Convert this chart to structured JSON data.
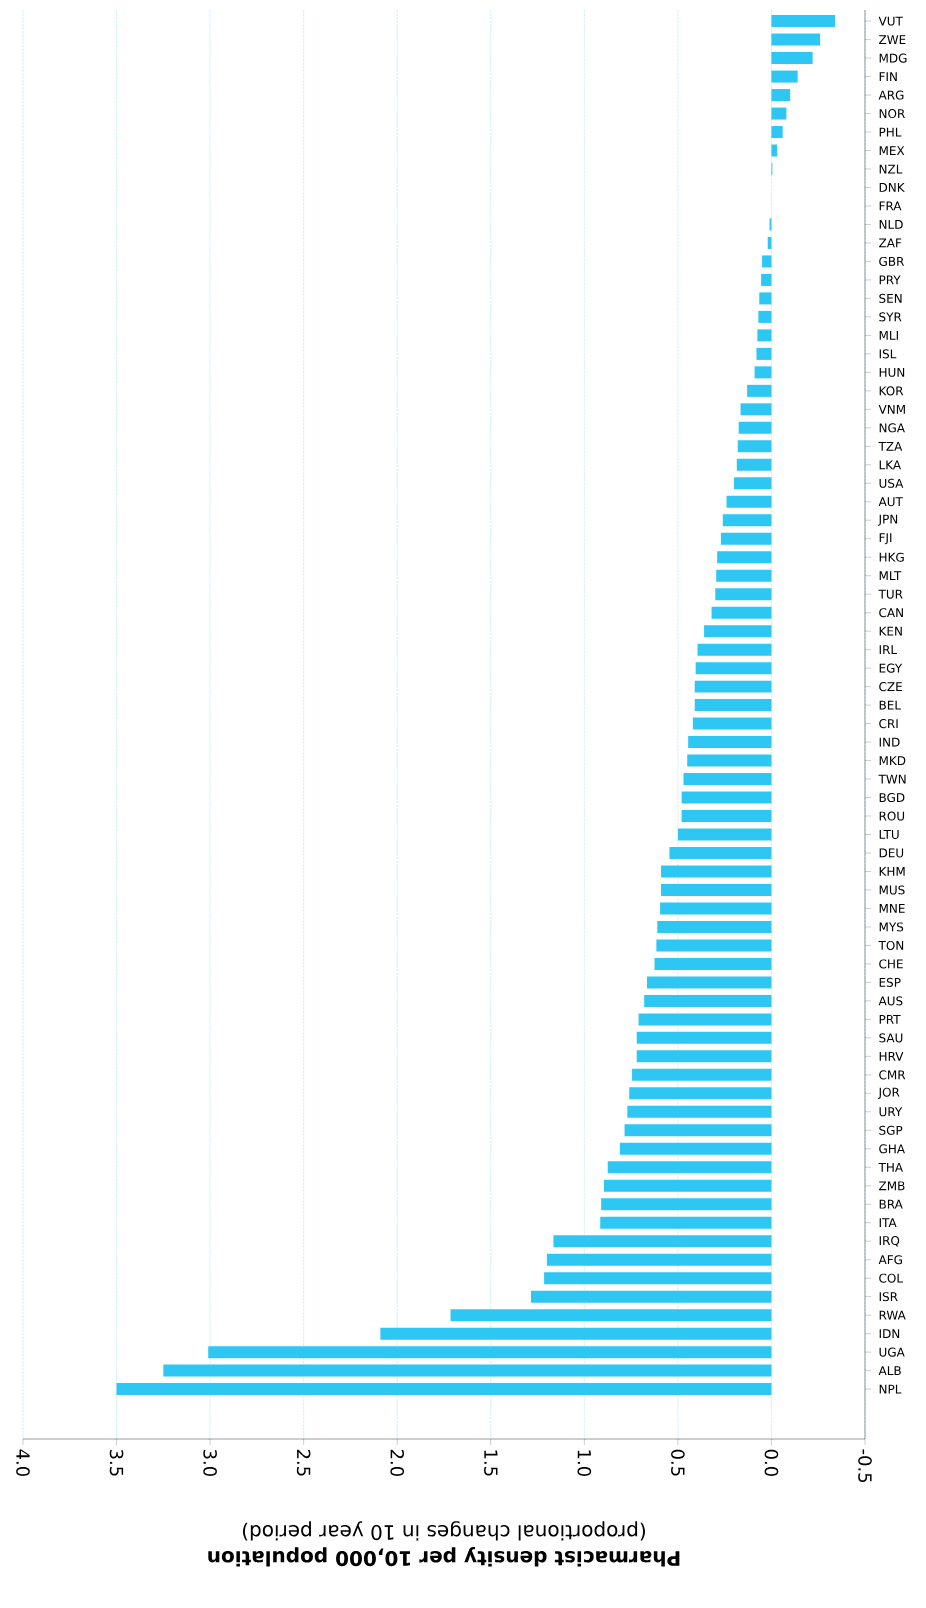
{
  "chart_data": {
    "type": "bar",
    "orientation": "horizontal",
    "xlabel": "**Pharmacist density per 10,000 population**\n(proportional changes in 10 year period)",
    "categories": [
      "VUT",
      "ZWE",
      "MDG",
      "FIN",
      "ARG",
      "NOR",
      "PHL",
      "MEX",
      "NZL",
      "DNK",
      "FRA",
      "NLD",
      "ZAF",
      "GBR",
      "PRY",
      "SEN",
      "SYR",
      "MLI",
      "ISL",
      "HUN",
      "KOR",
      "VNM",
      "NGA",
      "TZA",
      "LKA",
      "USA",
      "AUT",
      "JPN",
      "FJI",
      "HKG",
      "MLT",
      "TUR",
      "CAN",
      "KEN",
      "IRL",
      "EGY",
      "CZE",
      "BEL",
      "CRI",
      "IND",
      "MKD",
      "TWN",
      "BGD",
      "ROU",
      "LTU",
      "DEU",
      "KHM",
      "MUS",
      "MNE",
      "MYS",
      "TON",
      "CHE",
      "ESP",
      "AUS",
      "PRT",
      "SAU",
      "HRV",
      "CMR",
      "JOR",
      "URY",
      "SGP",
      "GHA",
      "THA",
      "ZMB",
      "BRA",
      "ITA",
      "IRQ",
      "AFG",
      "COL",
      "ISR",
      "RWA",
      "IDN",
      "UGA",
      "ALB",
      "NPL"
    ],
    "values": [
      -0.34,
      -0.26,
      -0.22,
      -0.14,
      -0.1,
      -0.08,
      -0.06,
      -0.03,
      -0.005,
      null,
      null,
      0.01,
      0.02,
      0.05,
      0.055,
      0.065,
      0.07,
      0.075,
      0.08,
      0.09,
      0.13,
      0.165,
      0.175,
      0.18,
      0.185,
      0.2,
      0.24,
      0.26,
      0.27,
      0.29,
      0.295,
      0.3,
      0.32,
      0.36,
      0.395,
      0.405,
      0.41,
      0.41,
      0.42,
      0.445,
      0.45,
      0.47,
      0.48,
      0.48,
      0.5,
      0.545,
      0.59,
      0.59,
      0.595,
      0.61,
      0.615,
      0.625,
      0.665,
      0.68,
      0.71,
      0.72,
      0.72,
      0.745,
      0.76,
      0.77,
      0.785,
      0.81,
      0.875,
      0.895,
      0.91,
      0.915,
      1.165,
      1.2,
      1.215,
      1.285,
      1.715,
      2.09,
      3.01,
      3.25,
      3.5
    ],
    "color": "#2ec6f3",
    "xlim": [
      4.0,
      -0.5
    ],
    "xticks": [
      {
        "value": 4.0,
        "label": "4.0"
      },
      {
        "value": 3.5,
        "label": "3.5"
      },
      {
        "value": 3.0,
        "label": "3.0"
      },
      {
        "value": 2.5,
        "label": "2.5"
      },
      {
        "value": 2.0,
        "label": "2.0"
      },
      {
        "value": 1.5,
        "label": "1.5"
      },
      {
        "value": 1.0,
        "label": "1.0"
      },
      {
        "value": 0.5,
        "label": "0.5"
      },
      {
        "value": 0.0,
        "label": "0.0"
      },
      {
        "value": -0.5,
        "label": "-0.5"
      }
    ],
    "grid": "x"
  }
}
